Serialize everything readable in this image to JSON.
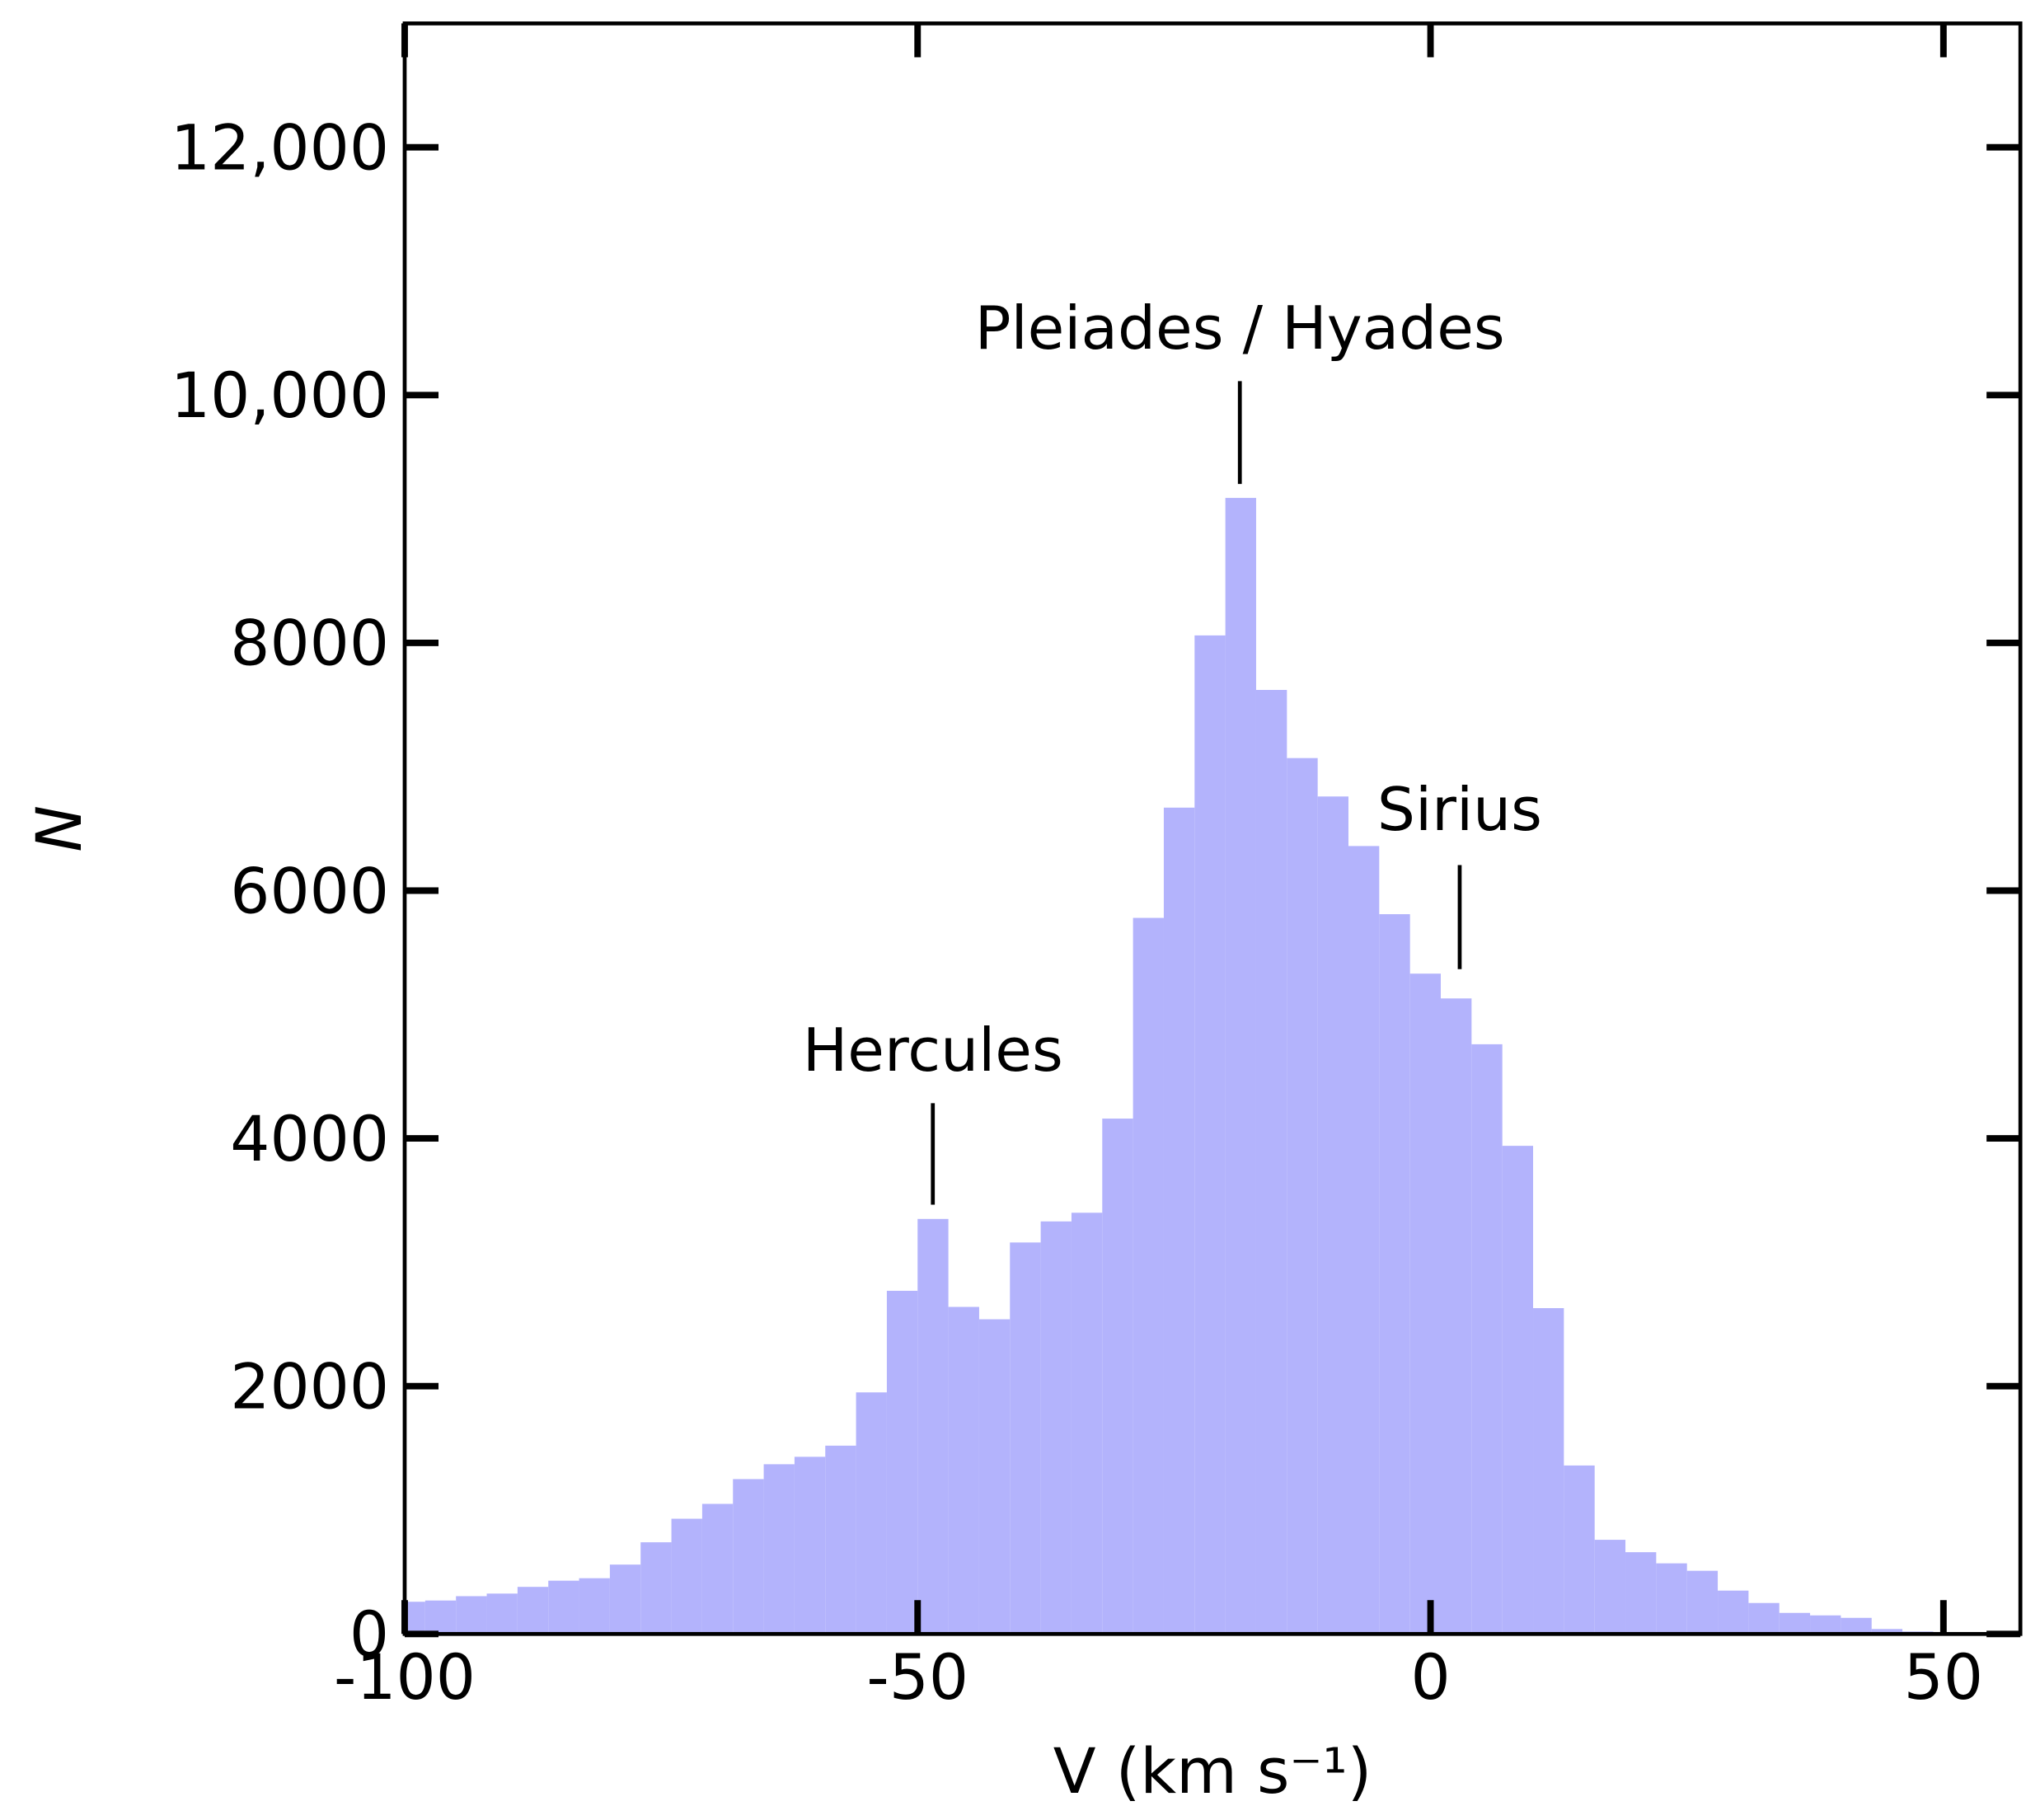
{
  "chart_data": {
    "type": "histogram",
    "xlabel": "V (km s⁻¹)",
    "ylabel": "N",
    "bins": [
      -101,
      -98,
      -95,
      -92,
      -89,
      -86,
      -83,
      -80,
      -77,
      -74,
      -71,
      -68,
      -65,
      -62,
      -59,
      -56,
      -53,
      -50,
      -47,
      -44,
      -41,
      -38,
      -35,
      -32,
      -29,
      -26,
      -23,
      -20,
      -17,
      -14,
      -11,
      -8,
      -5,
      -2,
      1,
      4,
      7,
      10,
      13,
      16,
      19,
      22,
      25,
      28,
      31,
      34,
      37,
      40,
      43,
      46,
      49
    ],
    "values": [
      260,
      270,
      305,
      326,
      380,
      430,
      450,
      560,
      740,
      930,
      1050,
      1250,
      1370,
      1430,
      1520,
      1950,
      2770,
      3350,
      2640,
      2540,
      3160,
      3330,
      3400,
      4160,
      5780,
      6670,
      8060,
      9170,
      7620,
      7070,
      6760,
      6360,
      5810,
      5330,
      5130,
      4760,
      3940,
      2630,
      1360,
      760,
      660,
      570,
      510,
      350,
      250,
      170,
      150,
      130,
      40,
      20
    ],
    "color": "#b3b3fc",
    "xlim": [
      -100,
      57.5
    ],
    "ylim": [
      0,
      13000
    ],
    "xticks": [
      -100,
      -50,
      0,
      50
    ],
    "yticks": [
      0,
      2000,
      4000,
      6000,
      8000,
      {
        "value": 10000,
        "label": "10,000"
      },
      {
        "value": 12000,
        "label": "12,000"
      }
    ],
    "annotations": [
      "Pleiades / Hyades",
      "Sirius",
      "Hercules"
    ]
  }
}
